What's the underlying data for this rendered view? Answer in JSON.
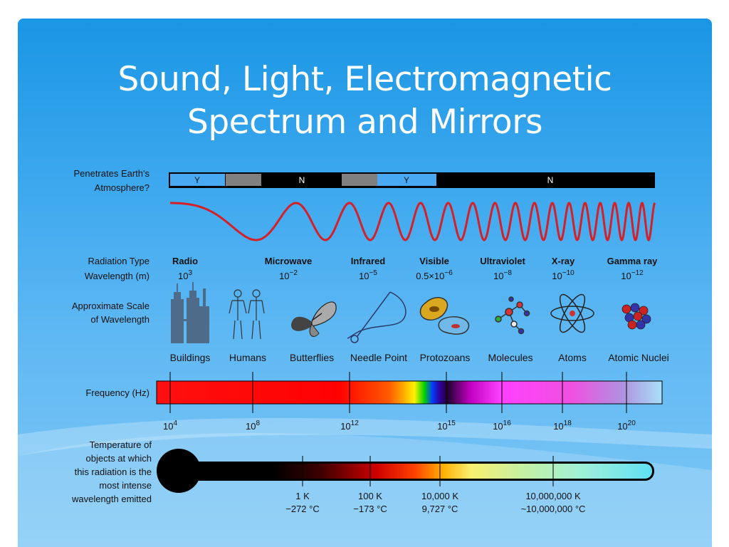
{
  "title": {
    "line1": "Sound, Light, Electromagnetic",
    "line2": "Spectrum and Mirrors"
  },
  "atmosphere": {
    "label_line1": "Penetrates Earth's",
    "label_line2": "Atmosphere?",
    "segments": [
      "Y",
      "N",
      "Y",
      "N"
    ]
  },
  "radiation": {
    "type_label": "Radiation Type",
    "wavelength_label": "Wavelength (m)",
    "types": [
      {
        "name": "Radio",
        "base": "10",
        "exp": "3"
      },
      {
        "name": "Microwave",
        "base": "10",
        "exp": "−2"
      },
      {
        "name": "Infrared",
        "base": "10",
        "exp": "−5"
      },
      {
        "name": "Visible",
        "base": "0.5×10",
        "exp": "−6"
      },
      {
        "name": "Ultraviolet",
        "base": "10",
        "exp": "−8"
      },
      {
        "name": "X-ray",
        "base": "10",
        "exp": "−10"
      },
      {
        "name": "Gamma ray",
        "base": "10",
        "exp": "−12"
      }
    ]
  },
  "scale": {
    "label_line1": "Approximate Scale",
    "label_line2": "of Wavelength",
    "items": [
      {
        "name": "Buildings",
        "icon": "buildings-icon"
      },
      {
        "name": "Humans",
        "icon": "humans-icon"
      },
      {
        "name": "Butterflies",
        "icon": "butterfly-icon"
      },
      {
        "name": "Needle Point",
        "icon": "needle-icon"
      },
      {
        "name": "Protozoans",
        "icon": "protozoa-icon"
      },
      {
        "name": "Molecules",
        "icon": "molecule-icon"
      },
      {
        "name": "Atoms",
        "icon": "atom-icon"
      },
      {
        "name": "Atomic Nuclei",
        "icon": "nucleus-icon"
      }
    ]
  },
  "frequency": {
    "label": "Frequency (Hz)",
    "ticks": [
      {
        "base": "10",
        "exp": "4"
      },
      {
        "base": "10",
        "exp": "8"
      },
      {
        "base": "10",
        "exp": "12"
      },
      {
        "base": "10",
        "exp": "15"
      },
      {
        "base": "10",
        "exp": "16"
      },
      {
        "base": "10",
        "exp": "18"
      },
      {
        "base": "10",
        "exp": "20"
      }
    ]
  },
  "temperature": {
    "label_lines": [
      "Temperature of",
      "objects at which",
      "this radiation is the",
      "most intense",
      "wavelength emitted"
    ],
    "ticks": [
      {
        "k": "1 K",
        "c": "−272 °C"
      },
      {
        "k": "100 K",
        "c": "−173 °C"
      },
      {
        "k": "10,000 K",
        "c": "9,727 °C"
      },
      {
        "k": "10,000,000 K",
        "c": "~10,000,000 °C"
      }
    ]
  },
  "colors": {
    "wave": "#d42026",
    "slide_top": "#1a96e4",
    "slide_bottom": "#7fc8f6"
  }
}
